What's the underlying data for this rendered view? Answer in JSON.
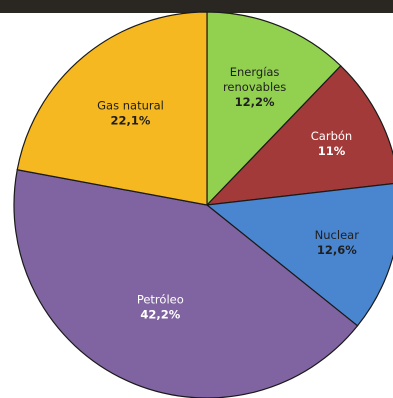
{
  "chart_data": {
    "type": "pie",
    "title": "",
    "slices": [
      {
        "label": "Energías renovables",
        "label_lines": [
          "Energías",
          "renovables"
        ],
        "value": 12.2,
        "value_label": "12,2%",
        "color": "#92D050"
      },
      {
        "label": "Carbón",
        "label_lines": [
          "Carbón"
        ],
        "value": 11.0,
        "value_label": "11%",
        "color": "#A33A3A"
      },
      {
        "label": "Nuclear",
        "label_lines": [
          "Nuclear"
        ],
        "value": 12.6,
        "value_label": "12,6%",
        "color": "#4A86D0"
      },
      {
        "label": "Petróleo",
        "label_lines": [
          "Petróleo"
        ],
        "value": 42.2,
        "value_label": "42,2%",
        "color": "#8064A2"
      },
      {
        "label": "Gas natural",
        "label_lines": [
          "Gas natural"
        ],
        "value": 22.1,
        "value_label": "22,1%",
        "color": "#F6B820"
      }
    ],
    "start_angle": "12 o'clock",
    "direction": "clockwise",
    "labels_inside": true,
    "legend": "none"
  }
}
